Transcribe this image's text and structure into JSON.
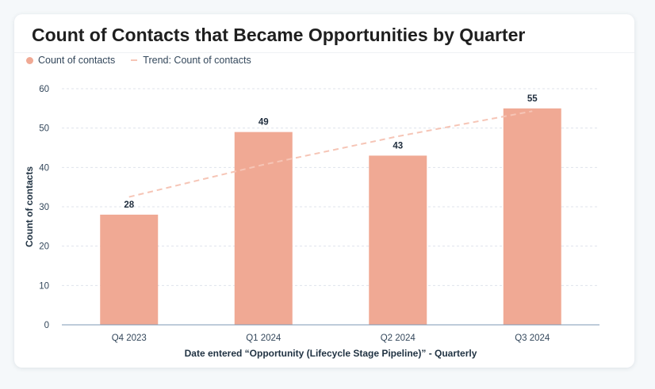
{
  "colors": {
    "bar": "#f0a994",
    "trend": "#f6c5b6",
    "axis_text": "#33475b",
    "grid": "#dfe3eb",
    "axis_line": "#7c98b6",
    "title": "#1f1f1f"
  },
  "legend": {
    "bar_label": "Count of contacts",
    "trend_label": "Trend: Count of contacts"
  },
  "chart_data": {
    "type": "bar",
    "title": "Count of Contacts that Became Opportunities by Quarter",
    "xlabel": "Date entered “Opportunity (Lifecycle Stage Pipeline)” - Quarterly",
    "ylabel": "Count of contacts",
    "categories": [
      "Q4 2023",
      "Q1 2024",
      "Q2 2024",
      "Q3 2024"
    ],
    "series": [
      {
        "name": "Count of contacts",
        "values": [
          28,
          49,
          43,
          55
        ]
      }
    ],
    "trend": {
      "name": "Trend: Count of contacts",
      "values": [
        32.5,
        40.7,
        47.9,
        54.3
      ]
    },
    "ylim": [
      0,
      60
    ],
    "yticks": [
      0,
      10,
      20,
      30,
      40,
      50,
      60
    ],
    "grid": true,
    "legend_position": "top-left",
    "data_labels": true
  }
}
